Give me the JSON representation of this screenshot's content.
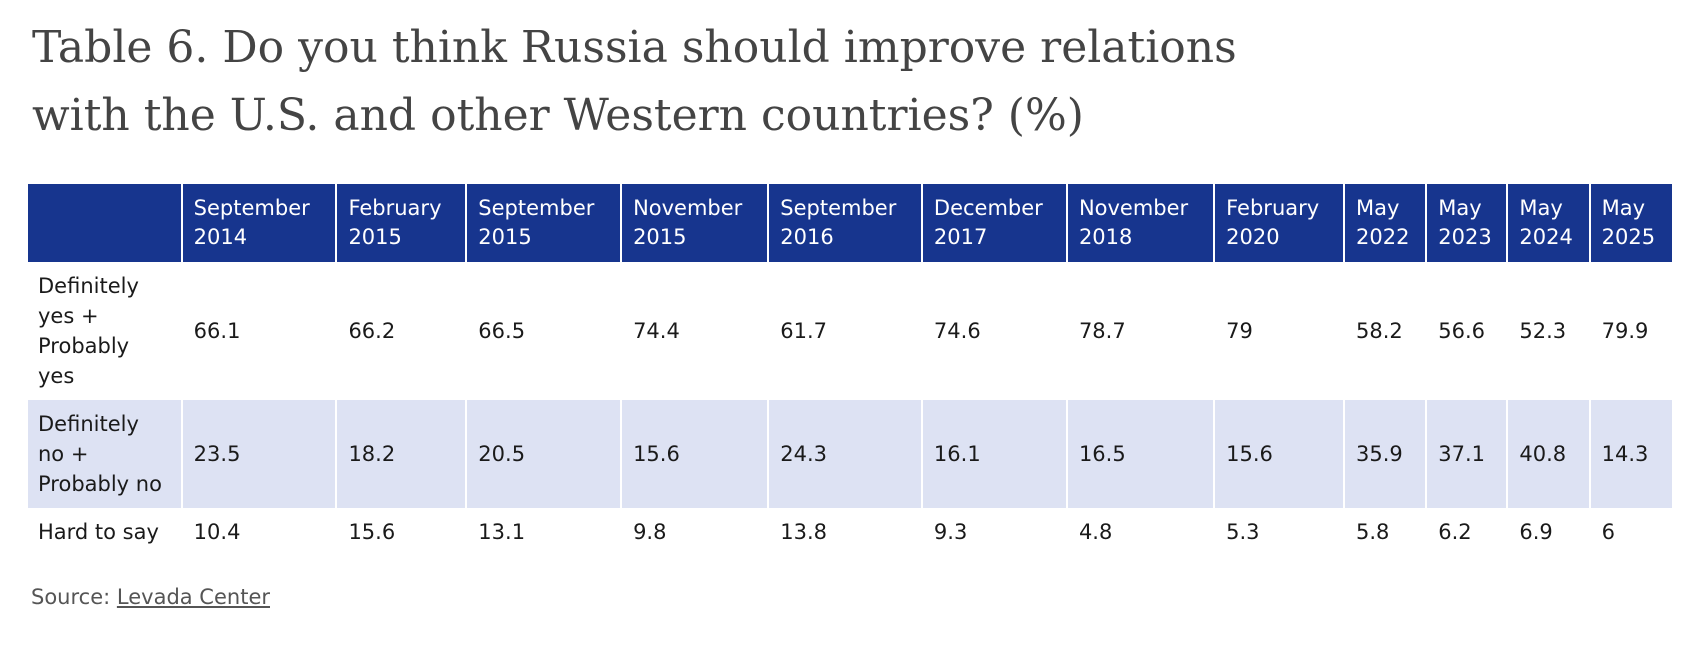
{
  "title": {
    "line1": "Table 6. Do you think Russia should improve relations",
    "line2": "with the U.S. and other Western countries? (%)"
  },
  "table": {
    "columns": [
      {
        "month": "",
        "year": ""
      },
      {
        "month": "September",
        "year": "2014"
      },
      {
        "month": "February",
        "year": "2015"
      },
      {
        "month": "September",
        "year": "2015"
      },
      {
        "month": "November",
        "year": "2015"
      },
      {
        "month": "September",
        "year": "2016"
      },
      {
        "month": "December",
        "year": "2017"
      },
      {
        "month": "November",
        "year": "2018"
      },
      {
        "month": "February",
        "year": "2020"
      },
      {
        "month": "May",
        "year": "2022"
      },
      {
        "month": "May",
        "year": "2023"
      },
      {
        "month": "May",
        "year": "2024"
      },
      {
        "month": "May",
        "year": "2025"
      }
    ],
    "rows": [
      {
        "label_lines": [
          "Definitely",
          "yes +",
          "Probably",
          "yes"
        ],
        "values": [
          "66.1",
          "66.2",
          "66.5",
          "74.4",
          "61.7",
          "74.6",
          "78.7",
          "79",
          "58.2",
          "56.6",
          "52.3",
          "79.9"
        ]
      },
      {
        "label_lines": [
          "Definitely",
          "no +",
          "Probably no"
        ],
        "values": [
          "23.5",
          "18.2",
          "20.5",
          "15.6",
          "24.3",
          "16.1",
          "16.5",
          "15.6",
          "35.9",
          "37.1",
          "40.8",
          "14.3"
        ]
      },
      {
        "label_lines": [
          "Hard to say"
        ],
        "values": [
          "10.4",
          "15.6",
          "13.1",
          "9.8",
          "13.8",
          "9.3",
          "4.8",
          "5.3",
          "5.8",
          "6.2",
          "6.9",
          "6"
        ]
      }
    ]
  },
  "source": {
    "prefix": "Source: ",
    "link_text": "Levada Center"
  },
  "colors": {
    "header_bg": "#17358e",
    "header_text": "#ffffff",
    "stripe_bg": "#dde2f3",
    "title_text": "#444444"
  }
}
